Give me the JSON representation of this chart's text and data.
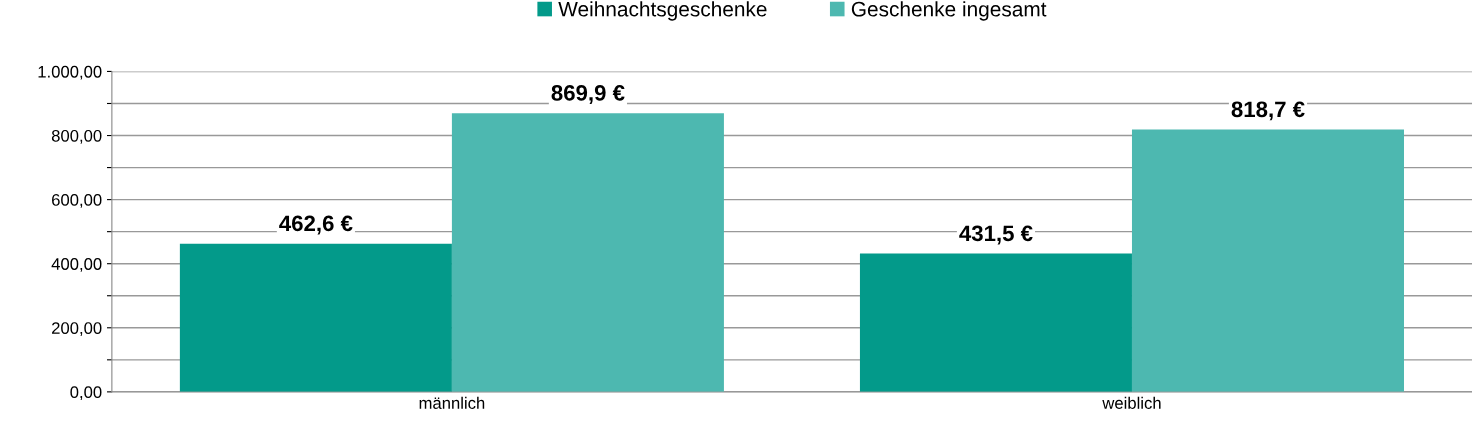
{
  "chart_data": {
    "type": "bar",
    "categories": [
      "männlich",
      "weiblich"
    ],
    "series": [
      {
        "name": "Weihnachtsgeschenke",
        "color": "#039a8a",
        "values": [
          462.6,
          431.5
        ],
        "value_labels": [
          "462,6 €",
          "431,5 €"
        ]
      },
      {
        "name": "Geschenke ingesamt",
        "color": "#4db8b0",
        "values": [
          869.9,
          818.7
        ],
        "value_labels": [
          "869,9 €",
          "818,7 €"
        ]
      }
    ],
    "ylim": [
      0,
      1000
    ],
    "yticks": [
      {
        "value": 0,
        "label": "0,00"
      },
      {
        "value": 100,
        "label": null
      },
      {
        "value": 200,
        "label": "200,00"
      },
      {
        "value": 300,
        "label": null
      },
      {
        "value": 400,
        "label": "400,00"
      },
      {
        "value": 500,
        "label": null
      },
      {
        "value": 600,
        "label": "600,00"
      },
      {
        "value": 700,
        "label": null
      },
      {
        "value": 800,
        "label": "800,00"
      },
      {
        "value": 900,
        "label": null
      },
      {
        "value": 1000,
        "label": "1.000,00"
      }
    ],
    "grid": "y",
    "legend": "top"
  }
}
